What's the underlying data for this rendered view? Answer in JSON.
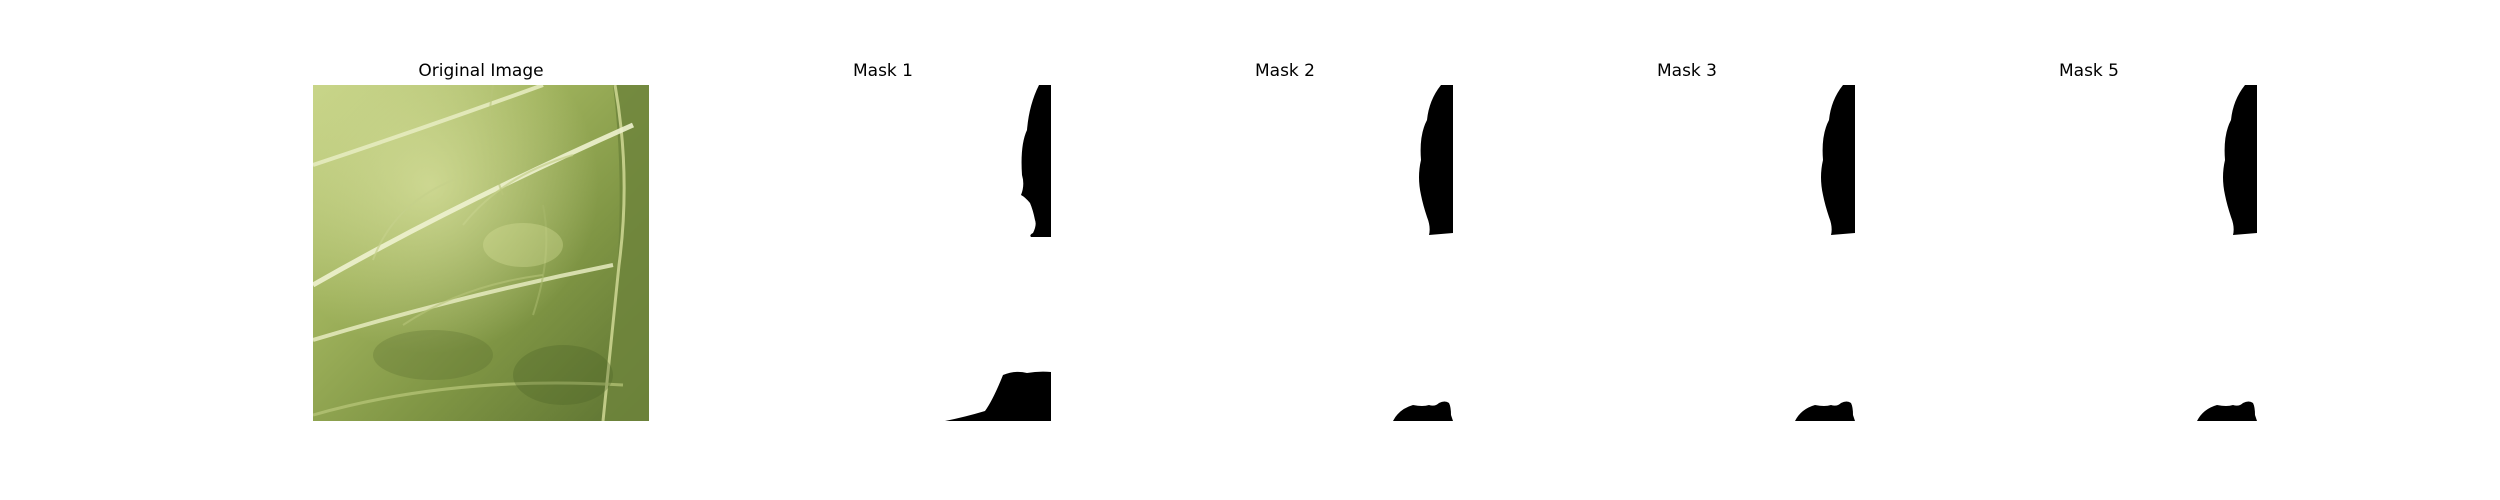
{
  "figure": {
    "panels": [
      {
        "title": "Original Image",
        "kind": "image"
      },
      {
        "title": "Mask 1",
        "kind": "mask"
      },
      {
        "title": "Mask 2",
        "kind": "mask"
      },
      {
        "title": "Mask 3",
        "kind": "mask"
      },
      {
        "title": "Mask 5",
        "kind": "mask"
      }
    ]
  },
  "colors": {
    "background": "#ffffff",
    "mask_foreground": "#000000",
    "leaf_light": "#c2cf7f",
    "leaf_mid": "#8ea24e",
    "leaf_dark": "#5f7532"
  }
}
